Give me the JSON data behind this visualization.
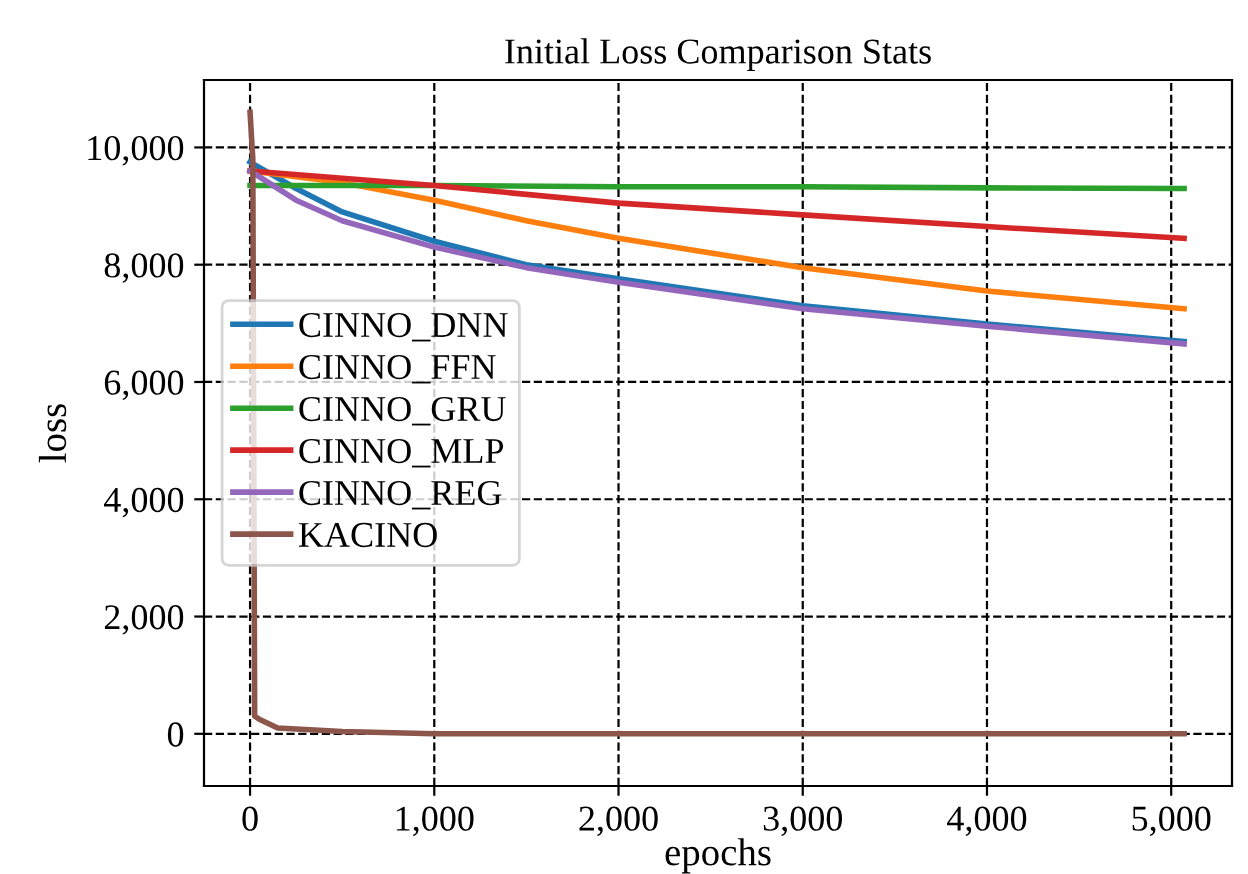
{
  "chart_data": {
    "type": "line",
    "title": "Initial Loss Comparison Stats",
    "xlabel": "epochs",
    "ylabel": "loss",
    "xlim": [
      -250,
      5330
    ],
    "ylim": [
      -890,
      11150
    ],
    "xticks": [
      0,
      {
        "value": 1000,
        "label": "1,000"
      },
      {
        "value": 2000,
        "label": "2,000"
      },
      {
        "value": 3000,
        "label": "3,000"
      },
      {
        "value": 4000,
        "label": "4,000"
      },
      {
        "value": 5000,
        "label": "5,000"
      }
    ],
    "yticks": [
      0,
      {
        "value": 2000,
        "label": "2,000"
      },
      {
        "value": 4000,
        "label": "4,000"
      },
      {
        "value": 6000,
        "label": "6,000"
      },
      {
        "value": 8000,
        "label": "8,000"
      },
      {
        "value": 10000,
        "label": "10,000"
      }
    ],
    "grid": true,
    "legend": "center left",
    "line_style": "solid",
    "marker": "none",
    "series": [
      {
        "name": "CINNO_DNN",
        "color": "#1f77b4",
        "x": [
          0,
          250,
          500,
          1000,
          1500,
          2000,
          3000,
          4000,
          5070
        ],
        "values": [
          9750,
          9300,
          8900,
          8400,
          8000,
          7760,
          7300,
          6990,
          6690
        ]
      },
      {
        "name": "CINNO_FFN",
        "color": "#ff7f0e",
        "x": [
          0,
          500,
          1000,
          1500,
          2000,
          3000,
          4000,
          5070
        ],
        "values": [
          9600,
          9400,
          9100,
          8750,
          8450,
          7950,
          7550,
          7250
        ]
      },
      {
        "name": "CINNO_GRU",
        "color": "#2ca02c",
        "x": [
          0,
          1000,
          2000,
          3000,
          4000,
          5070
        ],
        "values": [
          9350,
          9350,
          9330,
          9330,
          9310,
          9300
        ]
      },
      {
        "name": "CINNO_MLP",
        "color": "#d62728",
        "x": [
          0,
          1000,
          2000,
          3000,
          4000,
          5070
        ],
        "values": [
          9600,
          9350,
          9050,
          8850,
          8650,
          8450
        ]
      },
      {
        "name": "CINNO_REG",
        "color": "#9467bd",
        "x": [
          0,
          250,
          500,
          1000,
          1500,
          2000,
          3000,
          4000,
          5070
        ],
        "values": [
          9600,
          9100,
          8750,
          8300,
          7950,
          7700,
          7250,
          6950,
          6650
        ]
      },
      {
        "name": "KACINO",
        "color": "#8c564b",
        "x": [
          0,
          15,
          25,
          50,
          150,
          500,
          1000,
          5070
        ],
        "values": [
          10600,
          9800,
          300,
          250,
          100,
          40,
          0,
          0
        ]
      }
    ]
  }
}
